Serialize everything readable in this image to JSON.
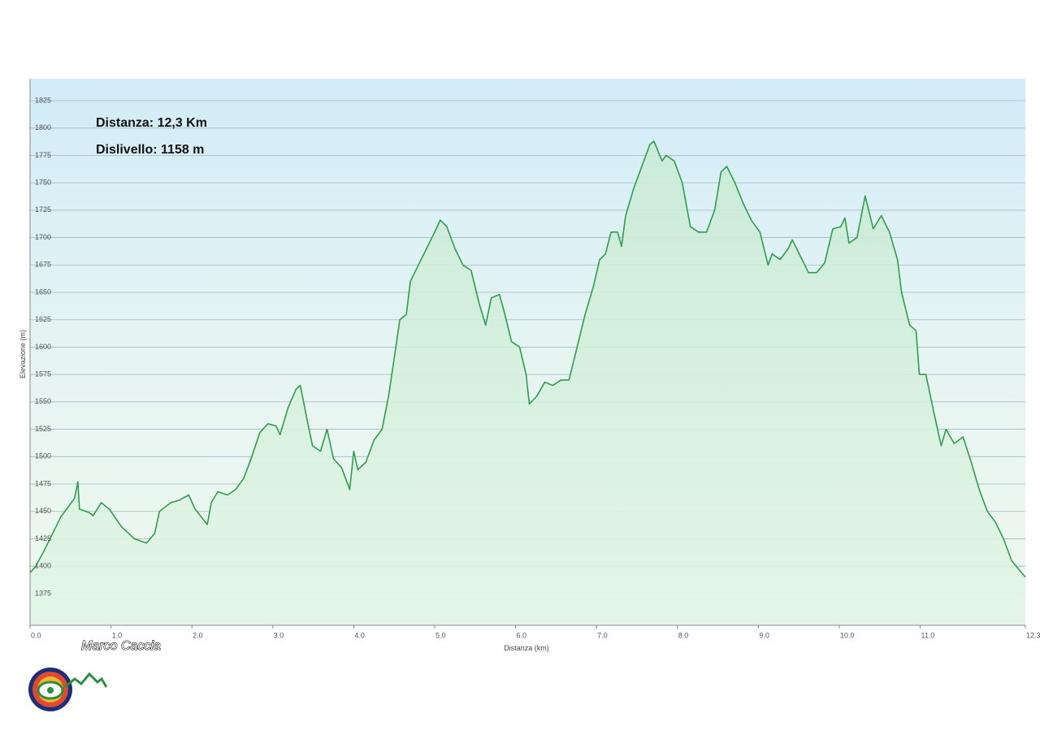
{
  "chart_data": {
    "type": "area",
    "annotations": [
      "Distanza: 12,3 Km",
      "Dislivello: 1158 m"
    ],
    "xlabel": "Distanza  (km)",
    "ylabel": "Elevazione (m)",
    "credit": "Marco Caccia",
    "color": "#2e9e4a",
    "grid": true,
    "xlim": [
      0,
      12.3
    ],
    "ylim": [
      1346,
      1845
    ],
    "xticks": [
      {
        "value": 0,
        "label": "0.0"
      },
      {
        "value": 1,
        "label": "1.0"
      },
      {
        "value": 2,
        "label": "2.0"
      },
      {
        "value": 3,
        "label": "3.0"
      },
      {
        "value": 4,
        "label": "4.0"
      },
      {
        "value": 5,
        "label": "5.0"
      },
      {
        "value": 6,
        "label": "6.0"
      },
      {
        "value": 7,
        "label": "7.0"
      },
      {
        "value": 8,
        "label": "8.0"
      },
      {
        "value": 9,
        "label": "9.0"
      },
      {
        "value": 10,
        "label": "10.0"
      },
      {
        "value": 11,
        "label": "11.0"
      },
      {
        "value": 12.3,
        "label": "12.3"
      }
    ],
    "yticks": [
      1375,
      1400,
      1425,
      1450,
      1475,
      1500,
      1525,
      1550,
      1575,
      1600,
      1625,
      1650,
      1675,
      1700,
      1725,
      1750,
      1775,
      1800,
      1825
    ],
    "x": [
      0,
      0.07,
      0.18,
      0.28,
      0.38,
      0.48,
      0.55,
      0.59,
      0.61,
      0.73,
      0.78,
      0.88,
      0.98,
      1.13,
      1.29,
      1.44,
      1.54,
      1.6,
      1.74,
      1.84,
      1.96,
      2.04,
      2.19,
      2.24,
      2.32,
      2.44,
      2.54,
      2.64,
      2.74,
      2.84,
      2.94,
      3.04,
      3.09,
      3.19,
      3.29,
      3.34,
      3.42,
      3.49,
      3.59,
      3.67,
      3.75,
      3.85,
      3.95,
      4.0,
      4.05,
      4.15,
      4.25,
      4.35,
      4.43,
      4.5,
      4.57,
      4.65,
      4.7,
      4.8,
      4.9,
      5.0,
      5.07,
      5.15,
      5.25,
      5.35,
      5.45,
      5.55,
      5.63,
      5.7,
      5.8,
      5.85,
      5.95,
      6.05,
      6.13,
      6.17,
      6.26,
      6.36,
      6.46,
      6.56,
      6.66,
      6.76,
      6.86,
      6.96,
      7.04,
      7.11,
      7.18,
      7.26,
      7.31,
      7.36,
      7.46,
      7.56,
      7.66,
      7.71,
      7.81,
      7.86,
      7.96,
      8.06,
      8.16,
      8.26,
      8.36,
      8.46,
      8.54,
      8.61,
      8.71,
      8.82,
      8.92,
      9.02,
      9.12,
      9.17,
      9.27,
      9.37,
      9.42,
      9.52,
      9.62,
      9.72,
      9.82,
      9.92,
      10.02,
      10.07,
      10.12,
      10.22,
      10.32,
      10.42,
      10.52,
      10.62,
      10.72,
      10.77,
      10.87,
      10.95,
      10.99,
      11.07,
      11.17,
      11.26,
      11.32,
      11.42,
      11.53,
      11.63,
      11.73,
      11.83,
      11.93,
      12.03,
      12.13,
      12.22,
      12.3
    ],
    "values": [
      1394,
      1400,
      1415,
      1430,
      1445,
      1455,
      1462,
      1477,
      1452,
      1449,
      1446,
      1458,
      1452,
      1436,
      1425,
      1421,
      1430,
      1450,
      1458,
      1460,
      1465,
      1452,
      1438,
      1458,
      1468,
      1465,
      1470,
      1480,
      1500,
      1522,
      1530,
      1528,
      1520,
      1545,
      1562,
      1565,
      1535,
      1510,
      1505,
      1525,
      1498,
      1490,
      1470,
      1505,
      1488,
      1495,
      1515,
      1525,
      1555,
      1590,
      1625,
      1630,
      1660,
      1675,
      1690,
      1705,
      1716,
      1710,
      1690,
      1675,
      1670,
      1640,
      1620,
      1645,
      1648,
      1635,
      1605,
      1600,
      1575,
      1548,
      1555,
      1568,
      1565,
      1570,
      1570,
      1600,
      1630,
      1655,
      1680,
      1685,
      1705,
      1705,
      1692,
      1720,
      1745,
      1765,
      1785,
      1788,
      1770,
      1775,
      1770,
      1750,
      1710,
      1705,
      1705,
      1725,
      1760,
      1765,
      1750,
      1730,
      1715,
      1705,
      1675,
      1685,
      1680,
      1690,
      1698,
      1683,
      1668,
      1668,
      1677,
      1708,
      1710,
      1718,
      1695,
      1700,
      1738,
      1708,
      1720,
      1705,
      1680,
      1650,
      1620,
      1615,
      1575,
      1575,
      1540,
      1510,
      1525,
      1512,
      1518,
      1495,
      1470,
      1450,
      1440,
      1425,
      1405,
      1397,
      1390
    ]
  }
}
